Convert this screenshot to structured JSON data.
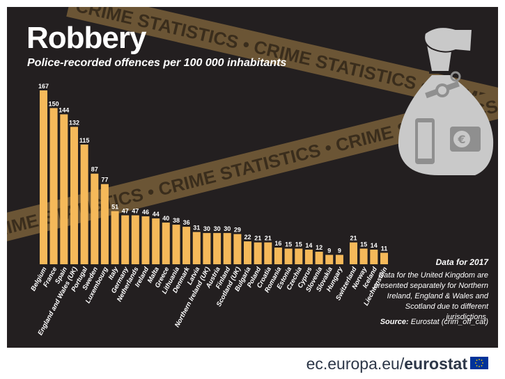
{
  "title": "Robbery",
  "subtitle": "Police-recorded offences per 100 000 inhabitants",
  "tape_text": "CRIME STATISTICS • CRIME STATISTICS • CRIME STATISTICS • CRIME STATISTICS • CRIME STATISTICS •",
  "data_year": "Data for 2017",
  "note": "Data for the United Kingdom are presented separately for Northern Ireland, England & Wales and Scotland due to different jurisdictions.",
  "source_label": "Source:",
  "source_value": "Eurostat (crim_off_cat)",
  "footer": {
    "site": "ec.europa.eu/",
    "brand": "eurostat"
  },
  "colors": {
    "bar": "#f5b95a",
    "background": "#231f20",
    "tape": "#6b5535",
    "bag": "#c9c9c9"
  },
  "icons": [
    "money-bag-icon",
    "euro-icon",
    "phone-icon",
    "watch-icon",
    "ring-icon",
    "eu-flag-icon"
  ],
  "chart_data": {
    "type": "bar",
    "title": "Robbery",
    "subtitle": "Police-recorded offences per 100 000 inhabitants",
    "ylim": [
      0,
      175
    ],
    "grid": false,
    "groups": [
      {
        "categories": [
          "Belgium",
          "France",
          "Spain",
          "England and Wales (UK)",
          "Portugal",
          "Sweden",
          "Luxembourg",
          "Italy",
          "Germany",
          "Netherlands",
          "Ireland",
          "Malta",
          "Greece",
          "Lithuania",
          "Denmark",
          "Latvia",
          "Northern Ireland (UK)",
          "Austria",
          "Finland",
          "Scotland (UK)",
          "Bulgaria",
          "Poland",
          "Croatia",
          "Romania",
          "Estonia",
          "Czechia",
          "Cyprus",
          "Slovenia",
          "Slovakia",
          "Hungary"
        ],
        "values": [
          167,
          150,
          144,
          132,
          115,
          87,
          77,
          51,
          47,
          47,
          46,
          44,
          40,
          38,
          36,
          31,
          30,
          30,
          30,
          29,
          22,
          21,
          21,
          16,
          15,
          15,
          14,
          12,
          9,
          9
        ]
      },
      {
        "categories": [
          "Switzerland",
          "Norway",
          "Iceland",
          "Liechtenstein"
        ],
        "values": [
          21,
          15,
          14,
          11
        ]
      }
    ]
  }
}
